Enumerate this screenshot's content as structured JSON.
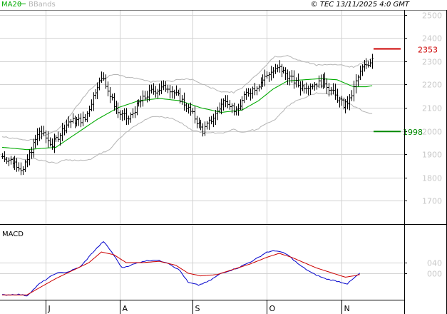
{
  "header": {
    "copyright": "© TEC 13/11/2025 4:0 GMT",
    "legend": [
      {
        "label": "MA20",
        "color": "#00aa00"
      },
      {
        "label": "BBands",
        "color": "#b4b4b4"
      }
    ]
  },
  "colors": {
    "price": "#000000",
    "ma": "#00aa00",
    "bbands": "#b4b4b4",
    "macd": "#0000cc",
    "signal": "#cc0000",
    "resistance": "#cc0000",
    "support": "#008800",
    "grid": "#d2d2d2",
    "axis_text": "#c8c8c8"
  },
  "chart_data": [
    {
      "type": "ohlc",
      "legend_placement": "top-left",
      "ylim": [
        1600,
        2520
      ],
      "y_ticks": [
        1700,
        1800,
        1900,
        2000,
        2100,
        2200,
        2300,
        2400,
        2500
      ],
      "x_ticks": [
        "J",
        "A",
        "S",
        "O",
        "N"
      ],
      "x_tick_index": [
        21,
        57,
        92,
        128,
        164
      ],
      "n_bars": 180,
      "close_anchors": [
        [
          0,
          1890
        ],
        [
          6,
          1865
        ],
        [
          10,
          1830
        ],
        [
          13,
          1900
        ],
        [
          18,
          2000
        ],
        [
          24,
          1940
        ],
        [
          32,
          2040
        ],
        [
          40,
          2050
        ],
        [
          46,
          2200
        ],
        [
          49,
          2230
        ],
        [
          52,
          2150
        ],
        [
          56,
          2080
        ],
        [
          61,
          2050
        ],
        [
          66,
          2120
        ],
        [
          72,
          2170
        ],
        [
          80,
          2190
        ],
        [
          87,
          2130
        ],
        [
          92,
          2070
        ],
        [
          97,
          2000
        ],
        [
          102,
          2060
        ],
        [
          108,
          2140
        ],
        [
          113,
          2080
        ],
        [
          118,
          2160
        ],
        [
          124,
          2200
        ],
        [
          129,
          2250
        ],
        [
          134,
          2270
        ],
        [
          139,
          2230
        ],
        [
          144,
          2190
        ],
        [
          150,
          2200
        ],
        [
          156,
          2210
        ],
        [
          161,
          2150
        ],
        [
          165,
          2110
        ],
        [
          168,
          2130
        ],
        [
          171,
          2210
        ],
        [
          174,
          2270
        ],
        [
          178,
          2300
        ],
        [
          179,
          2320
        ]
      ],
      "ma20_anchors": [
        [
          0,
          1930
        ],
        [
          12,
          1920
        ],
        [
          26,
          1930
        ],
        [
          36,
          1990
        ],
        [
          46,
          2050
        ],
        [
          56,
          2100
        ],
        [
          66,
          2130
        ],
        [
          76,
          2140
        ],
        [
          86,
          2130
        ],
        [
          96,
          2100
        ],
        [
          106,
          2080
        ],
        [
          116,
          2090
        ],
        [
          124,
          2130
        ],
        [
          131,
          2180
        ],
        [
          138,
          2215
        ],
        [
          146,
          2220
        ],
        [
          154,
          2225
        ],
        [
          162,
          2220
        ],
        [
          170,
          2190
        ],
        [
          176,
          2190
        ],
        [
          179,
          2195
        ]
      ],
      "bb_width_anchors": [
        [
          0,
          90
        ],
        [
          15,
          80
        ],
        [
          30,
          160
        ],
        [
          42,
          300
        ],
        [
          52,
          320
        ],
        [
          62,
          220
        ],
        [
          72,
          150
        ],
        [
          82,
          160
        ],
        [
          92,
          220
        ],
        [
          102,
          190
        ],
        [
          112,
          160
        ],
        [
          122,
          230
        ],
        [
          132,
          270
        ],
        [
          142,
          180
        ],
        [
          152,
          120
        ],
        [
          162,
          130
        ],
        [
          170,
          170
        ],
        [
          179,
          240
        ]
      ],
      "resistance": {
        "value": 2353,
        "label": "2353"
      },
      "support": {
        "value": 1998,
        "label": "1998"
      }
    },
    {
      "type": "line",
      "title": "MACD",
      "ylim": [
        -100,
        180
      ],
      "y_ticks": [
        0,
        40
      ],
      "y_tick_labels": [
        "000",
        "040"
      ],
      "series": [
        {
          "name": "MACD",
          "anchors": [
            [
              0,
              -82
            ],
            [
              8,
              -80
            ],
            [
              12,
              -85
            ],
            [
              18,
              -40
            ],
            [
              26,
              0
            ],
            [
              32,
              5
            ],
            [
              38,
              25
            ],
            [
              44,
              80
            ],
            [
              49,
              120
            ],
            [
              53,
              80
            ],
            [
              58,
              20
            ],
            [
              62,
              30
            ],
            [
              68,
              45
            ],
            [
              74,
              50
            ],
            [
              80,
              40
            ],
            [
              86,
              10
            ],
            [
              90,
              -35
            ],
            [
              95,
              -45
            ],
            [
              100,
              -30
            ],
            [
              106,
              0
            ],
            [
              114,
              20
            ],
            [
              122,
              50
            ],
            [
              128,
              80
            ],
            [
              133,
              85
            ],
            [
              138,
              70
            ],
            [
              144,
              30
            ],
            [
              150,
              0
            ],
            [
              156,
              -20
            ],
            [
              162,
              -30
            ],
            [
              167,
              -40
            ],
            [
              170,
              -20
            ],
            [
              173,
              0
            ]
          ]
        },
        {
          "name": "Signal",
          "anchors": [
            [
              0,
              -82
            ],
            [
              12,
              -82
            ],
            [
              18,
              -55
            ],
            [
              26,
              -20
            ],
            [
              34,
              10
            ],
            [
              42,
              40
            ],
            [
              48,
              80
            ],
            [
              54,
              70
            ],
            [
              60,
              40
            ],
            [
              68,
              40
            ],
            [
              76,
              45
            ],
            [
              84,
              30
            ],
            [
              90,
              0
            ],
            [
              96,
              -10
            ],
            [
              104,
              -5
            ],
            [
              112,
              15
            ],
            [
              120,
              35
            ],
            [
              128,
              60
            ],
            [
              134,
              75
            ],
            [
              140,
              60
            ],
            [
              146,
              40
            ],
            [
              152,
              20
            ],
            [
              160,
              0
            ],
            [
              166,
              -15
            ],
            [
              170,
              -10
            ],
            [
              173,
              -5
            ]
          ]
        }
      ]
    }
  ]
}
